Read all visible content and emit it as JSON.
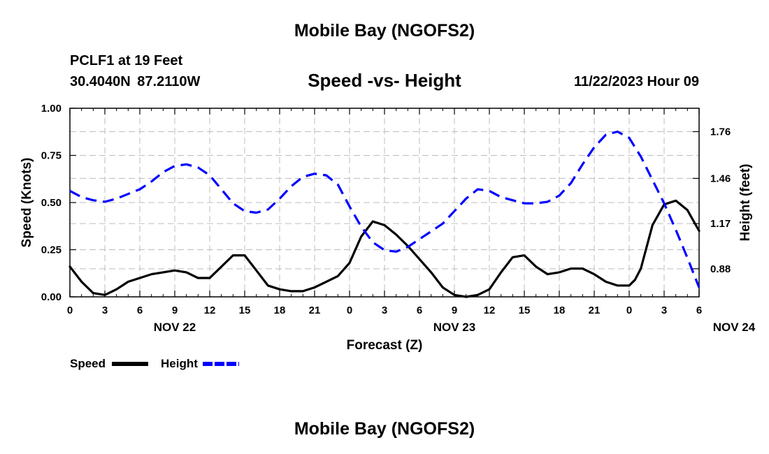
{
  "header": {
    "title": "Mobile Bay (NGOFS2)",
    "station": "PCLF1 at 19 Feet",
    "coords": "30.4040N  87.2110W",
    "subtitle": "Speed -vs- Height",
    "datetime": "11/22/2023 Hour 09"
  },
  "footer": {
    "title": "Mobile Bay (NGOFS2)"
  },
  "chart_data": {
    "type": "line",
    "title": "Speed -vs- Height",
    "xlabel": "Forecast (Z)",
    "ylabel_left": "Speed (Knots)",
    "ylabel_right": "Height (feet)",
    "x_ticks": [
      "0",
      "3",
      "6",
      "9",
      "12",
      "15",
      "18",
      "21",
      "0",
      "3",
      "6",
      "9",
      "12",
      "15",
      "18",
      "21",
      "0",
      "3",
      "6"
    ],
    "date_labels": [
      {
        "label": "NOV 22",
        "hour": 9
      },
      {
        "label": "NOV 23",
        "hour": 33
      },
      {
        "label": "NOV 24",
        "hour": 57
      }
    ],
    "xlim": [
      0,
      54
    ],
    "ylim_left": [
      0,
      1
    ],
    "y_ticks_left": [
      "0.00",
      "0.25",
      "0.50",
      "0.75",
      "1.00"
    ],
    "ylim_right": [
      0.7,
      1.91
    ],
    "y_ticks_right": [
      "0.88",
      "1.17",
      "1.46",
      "1.76"
    ],
    "grid": true,
    "legend_position": "bottom-left",
    "series": [
      {
        "name": "Speed",
        "axis": "left",
        "color": "#000000",
        "style": "solid",
        "x": [
          0,
          1,
          2,
          3,
          4,
          5,
          6,
          7,
          8,
          9,
          10,
          11,
          12,
          13,
          14,
          15,
          16,
          17,
          18,
          19,
          20,
          21,
          22,
          23,
          24,
          25,
          26,
          27,
          28,
          29,
          30,
          31,
          32,
          33,
          34,
          35,
          36,
          37,
          38,
          39,
          40,
          41,
          42,
          43,
          44,
          45,
          46,
          47,
          48,
          48.5,
          49,
          50,
          51,
          52,
          53,
          54
        ],
        "values": [
          0.16,
          0.08,
          0.02,
          0.01,
          0.04,
          0.08,
          0.1,
          0.12,
          0.13,
          0.14,
          0.13,
          0.1,
          0.1,
          0.16,
          0.22,
          0.22,
          0.14,
          0.06,
          0.04,
          0.03,
          0.03,
          0.05,
          0.08,
          0.11,
          0.18,
          0.32,
          0.4,
          0.38,
          0.33,
          0.27,
          0.2,
          0.13,
          0.05,
          0.01,
          0.0,
          0.01,
          0.04,
          0.13,
          0.21,
          0.22,
          0.16,
          0.12,
          0.13,
          0.15,
          0.15,
          0.12,
          0.08,
          0.06,
          0.06,
          0.09,
          0.15,
          0.38,
          0.49,
          0.51,
          0.46,
          0.35
        ]
      },
      {
        "name": "Height",
        "axis": "right",
        "color": "#0000ff",
        "style": "dashed",
        "x": [
          0,
          1,
          2,
          3,
          4,
          5,
          6,
          7,
          8,
          9,
          10,
          11,
          12,
          13,
          14,
          15,
          16,
          17,
          18,
          19,
          20,
          21,
          22,
          23,
          24,
          25,
          26,
          27,
          28,
          29,
          30,
          31,
          32,
          33,
          34,
          35,
          36,
          37,
          38,
          39,
          40,
          41,
          42,
          43,
          44,
          45,
          46,
          47,
          48,
          49,
          50,
          51,
          52,
          53,
          54
        ],
        "values": [
          1.38,
          1.34,
          1.32,
          1.31,
          1.33,
          1.36,
          1.39,
          1.44,
          1.5,
          1.54,
          1.55,
          1.53,
          1.48,
          1.39,
          1.3,
          1.25,
          1.24,
          1.26,
          1.33,
          1.41,
          1.47,
          1.49,
          1.48,
          1.42,
          1.28,
          1.15,
          1.05,
          1.0,
          0.99,
          1.02,
          1.07,
          1.12,
          1.17,
          1.25,
          1.33,
          1.39,
          1.38,
          1.34,
          1.32,
          1.3,
          1.3,
          1.31,
          1.35,
          1.43,
          1.55,
          1.66,
          1.74,
          1.76,
          1.72,
          1.6,
          1.45,
          1.3,
          1.13,
          0.95,
          0.76
        ]
      }
    ]
  }
}
